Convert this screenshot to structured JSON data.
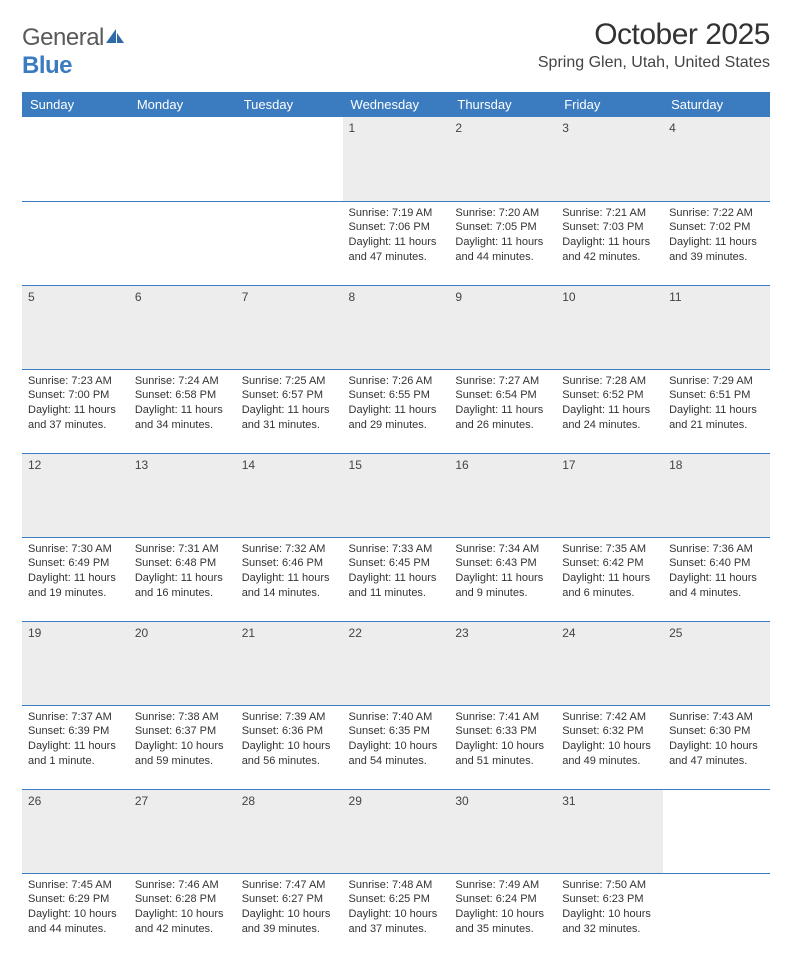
{
  "brand": {
    "part1": "General",
    "part2": "Blue"
  },
  "title": "October 2025",
  "location": "Spring Glen, Utah, United States",
  "colors": {
    "header_bg": "#3b7bbf",
    "header_text": "#ffffff",
    "daystrip_bg": "#ededed",
    "rule": "#3b7bbf",
    "text": "#333333"
  },
  "weekdays": [
    "Sunday",
    "Monday",
    "Tuesday",
    "Wednesday",
    "Thursday",
    "Friday",
    "Saturday"
  ],
  "weeks": [
    {
      "nums": [
        "",
        "",
        "",
        "1",
        "2",
        "3",
        "4"
      ],
      "cells": [
        null,
        null,
        null,
        {
          "sunrise": "7:19 AM",
          "sunset": "7:06 PM",
          "daylight": "11 hours and 47 minutes."
        },
        {
          "sunrise": "7:20 AM",
          "sunset": "7:05 PM",
          "daylight": "11 hours and 44 minutes."
        },
        {
          "sunrise": "7:21 AM",
          "sunset": "7:03 PM",
          "daylight": "11 hours and 42 minutes."
        },
        {
          "sunrise": "7:22 AM",
          "sunset": "7:02 PM",
          "daylight": "11 hours and 39 minutes."
        }
      ]
    },
    {
      "nums": [
        "5",
        "6",
        "7",
        "8",
        "9",
        "10",
        "11"
      ],
      "cells": [
        {
          "sunrise": "7:23 AM",
          "sunset": "7:00 PM",
          "daylight": "11 hours and 37 minutes."
        },
        {
          "sunrise": "7:24 AM",
          "sunset": "6:58 PM",
          "daylight": "11 hours and 34 minutes."
        },
        {
          "sunrise": "7:25 AM",
          "sunset": "6:57 PM",
          "daylight": "11 hours and 31 minutes."
        },
        {
          "sunrise": "7:26 AM",
          "sunset": "6:55 PM",
          "daylight": "11 hours and 29 minutes."
        },
        {
          "sunrise": "7:27 AM",
          "sunset": "6:54 PM",
          "daylight": "11 hours and 26 minutes."
        },
        {
          "sunrise": "7:28 AM",
          "sunset": "6:52 PM",
          "daylight": "11 hours and 24 minutes."
        },
        {
          "sunrise": "7:29 AM",
          "sunset": "6:51 PM",
          "daylight": "11 hours and 21 minutes."
        }
      ]
    },
    {
      "nums": [
        "12",
        "13",
        "14",
        "15",
        "16",
        "17",
        "18"
      ],
      "cells": [
        {
          "sunrise": "7:30 AM",
          "sunset": "6:49 PM",
          "daylight": "11 hours and 19 minutes."
        },
        {
          "sunrise": "7:31 AM",
          "sunset": "6:48 PM",
          "daylight": "11 hours and 16 minutes."
        },
        {
          "sunrise": "7:32 AM",
          "sunset": "6:46 PM",
          "daylight": "11 hours and 14 minutes."
        },
        {
          "sunrise": "7:33 AM",
          "sunset": "6:45 PM",
          "daylight": "11 hours and 11 minutes."
        },
        {
          "sunrise": "7:34 AM",
          "sunset": "6:43 PM",
          "daylight": "11 hours and 9 minutes."
        },
        {
          "sunrise": "7:35 AM",
          "sunset": "6:42 PM",
          "daylight": "11 hours and 6 minutes."
        },
        {
          "sunrise": "7:36 AM",
          "sunset": "6:40 PM",
          "daylight": "11 hours and 4 minutes."
        }
      ]
    },
    {
      "nums": [
        "19",
        "20",
        "21",
        "22",
        "23",
        "24",
        "25"
      ],
      "cells": [
        {
          "sunrise": "7:37 AM",
          "sunset": "6:39 PM",
          "daylight": "11 hours and 1 minute."
        },
        {
          "sunrise": "7:38 AM",
          "sunset": "6:37 PM",
          "daylight": "10 hours and 59 minutes."
        },
        {
          "sunrise": "7:39 AM",
          "sunset": "6:36 PM",
          "daylight": "10 hours and 56 minutes."
        },
        {
          "sunrise": "7:40 AM",
          "sunset": "6:35 PM",
          "daylight": "10 hours and 54 minutes."
        },
        {
          "sunrise": "7:41 AM",
          "sunset": "6:33 PM",
          "daylight": "10 hours and 51 minutes."
        },
        {
          "sunrise": "7:42 AM",
          "sunset": "6:32 PM",
          "daylight": "10 hours and 49 minutes."
        },
        {
          "sunrise": "7:43 AM",
          "sunset": "6:30 PM",
          "daylight": "10 hours and 47 minutes."
        }
      ]
    },
    {
      "nums": [
        "26",
        "27",
        "28",
        "29",
        "30",
        "31",
        ""
      ],
      "cells": [
        {
          "sunrise": "7:45 AM",
          "sunset": "6:29 PM",
          "daylight": "10 hours and 44 minutes."
        },
        {
          "sunrise": "7:46 AM",
          "sunset": "6:28 PM",
          "daylight": "10 hours and 42 minutes."
        },
        {
          "sunrise": "7:47 AM",
          "sunset": "6:27 PM",
          "daylight": "10 hours and 39 minutes."
        },
        {
          "sunrise": "7:48 AM",
          "sunset": "6:25 PM",
          "daylight": "10 hours and 37 minutes."
        },
        {
          "sunrise": "7:49 AM",
          "sunset": "6:24 PM",
          "daylight": "10 hours and 35 minutes."
        },
        {
          "sunrise": "7:50 AM",
          "sunset": "6:23 PM",
          "daylight": "10 hours and 32 minutes."
        },
        null
      ]
    }
  ],
  "labels": {
    "sunrise": "Sunrise: ",
    "sunset": "Sunset: ",
    "daylight": "Daylight: "
  }
}
